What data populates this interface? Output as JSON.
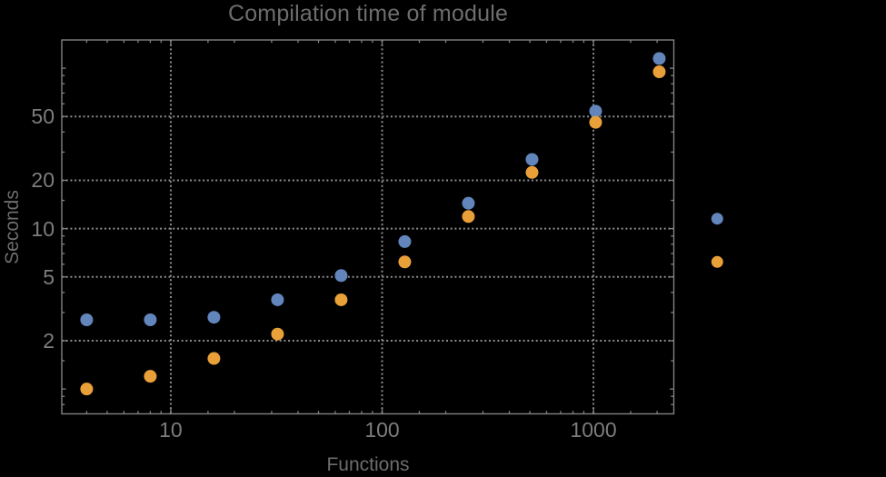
{
  "title": "Compilation time of module",
  "colors": {
    "background": "#000000",
    "frame": "#828282",
    "gridline": "#8c8c8c",
    "tick_label_text": "#7d7d7d",
    "axis_label_text": "#6d6d6d",
    "title_text": "#6d6d6d",
    "series1": "#6285bb",
    "series2": "#e9a039"
  },
  "chart_data": {
    "type": "scatter",
    "title": "Compilation time of module",
    "xlabel": "Functions",
    "ylabel": "Seconds",
    "x_scale": "log",
    "y_scale": "log",
    "xlim": [
      3.05,
      2400
    ],
    "ylim": [
      0.7,
      150
    ],
    "grid": "dotted",
    "legend_position": "right-of-frame",
    "x": [
      4,
      8,
      16,
      32,
      64,
      128,
      256,
      512,
      1024,
      2048
    ],
    "series": [
      {
        "name": "series-1-blue",
        "color": "#6285bb",
        "values": [
          2.7,
          2.7,
          2.8,
          3.6,
          5.1,
          8.3,
          14.4,
          27,
          54,
          115
        ]
      },
      {
        "name": "series-2-orange",
        "color": "#e9a039",
        "values": [
          1.0,
          1.2,
          1.55,
          2.2,
          3.6,
          6.2,
          11.9,
          22.4,
          46,
          95
        ]
      }
    ],
    "x_ticks_labeled": [
      {
        "v": 10,
        "label": "10"
      },
      {
        "v": 100,
        "label": "100"
      },
      {
        "v": 1000,
        "label": "1000"
      }
    ],
    "y_ticks_labeled": [
      {
        "v": 2,
        "label": "2"
      },
      {
        "v": 5,
        "label": "5"
      },
      {
        "v": 10,
        "label": "10"
      },
      {
        "v": 20,
        "label": "20"
      },
      {
        "v": 50,
        "label": "50"
      }
    ],
    "x_gridlines": [
      10,
      100,
      1000
    ],
    "y_gridlines": [
      2,
      5,
      10,
      20,
      50
    ],
    "x_submajor_ticks": [],
    "y_submajor_ticks": [
      1,
      100
    ],
    "x_minor_ticks": [
      4,
      5,
      6,
      7,
      8,
      9,
      15,
      20,
      30,
      40,
      50,
      60,
      70,
      80,
      90,
      150,
      200,
      300,
      400,
      500,
      600,
      700,
      800,
      900,
      1500,
      2000
    ],
    "y_minor_ticks": [
      0.8,
      0.9,
      1.5,
      3,
      4,
      6,
      7,
      8,
      9,
      15,
      30,
      40,
      60,
      70,
      80,
      90
    ],
    "legend_markers": [
      {
        "name": "series-1-blue",
        "color": "#6285bb"
      },
      {
        "name": "series-2-orange",
        "color": "#e9a039"
      }
    ]
  }
}
